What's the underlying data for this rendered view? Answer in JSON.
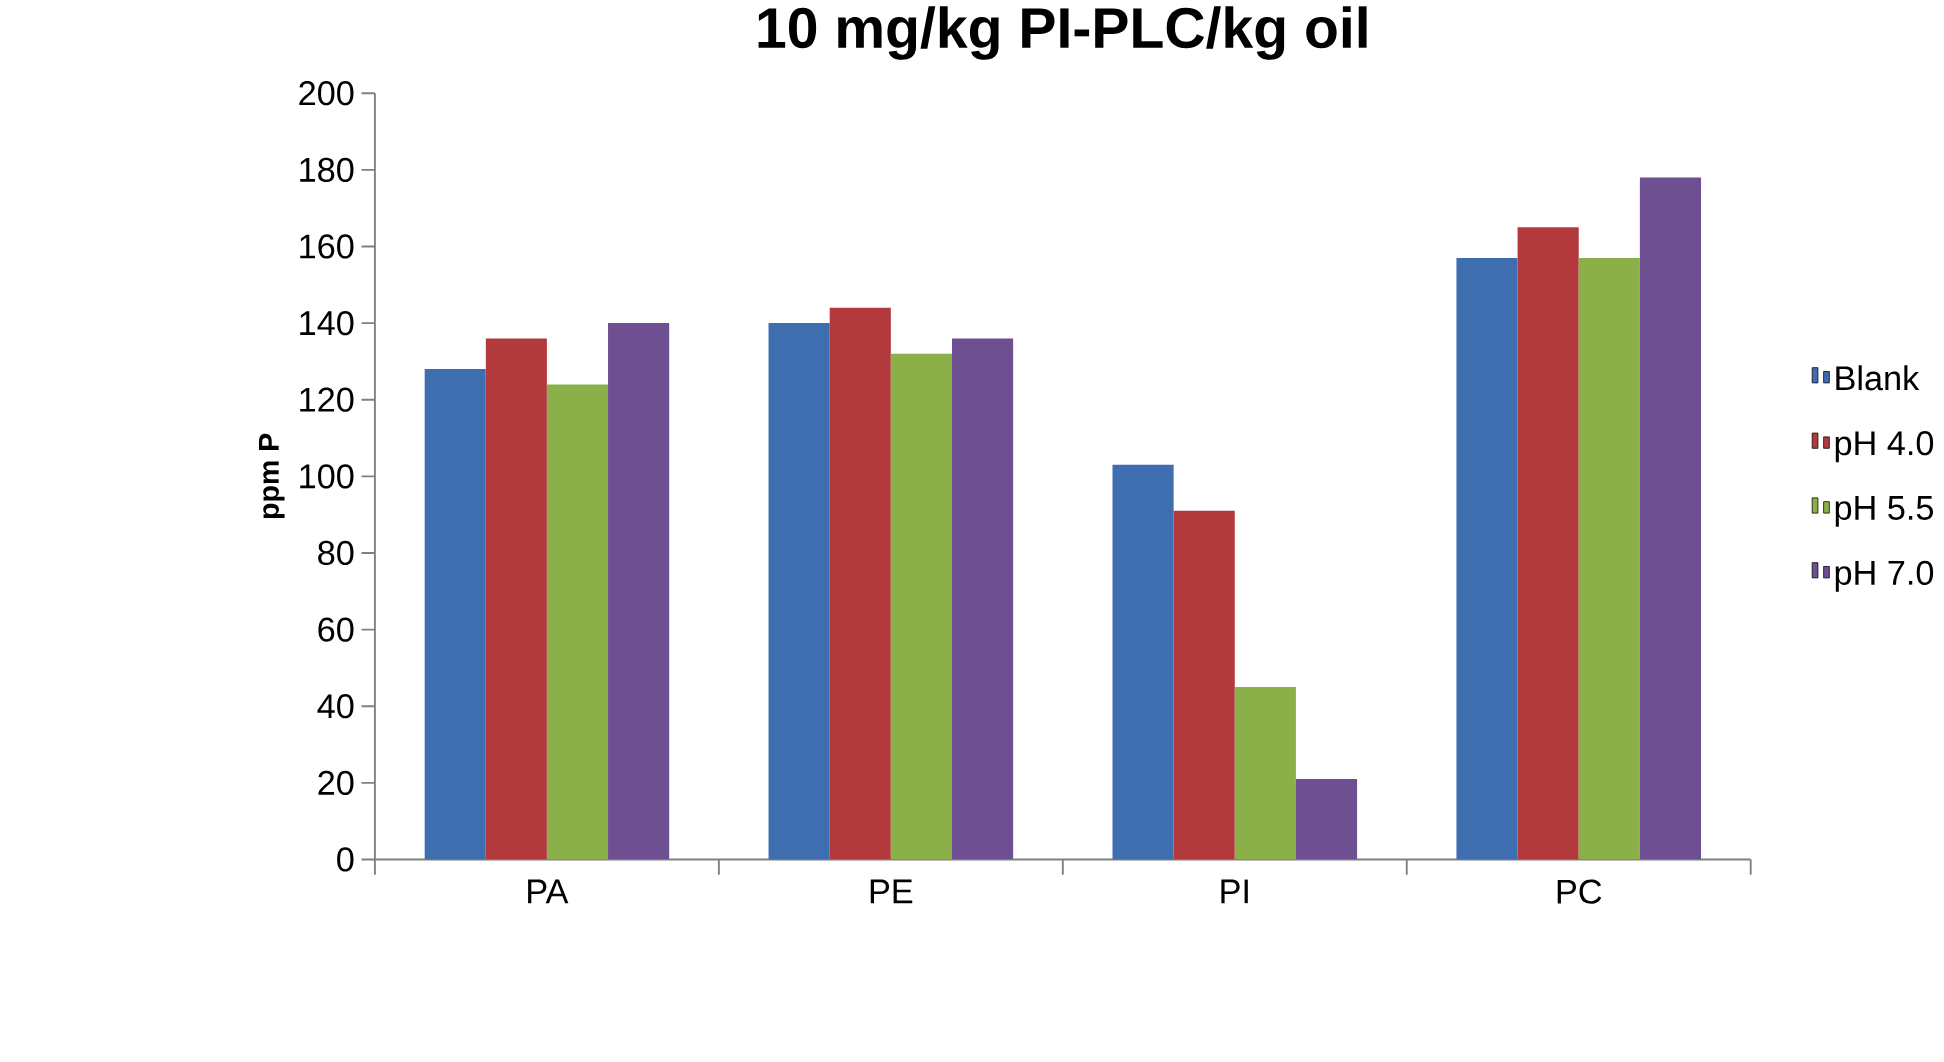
{
  "chart_data": {
    "type": "bar",
    "title": "10 mg/kg PI-PLC/kg oil",
    "ylabel": "ppm P",
    "categories": [
      "PA",
      "PE",
      "PI",
      "PC"
    ],
    "series": [
      {
        "name": "Blank",
        "color": "#3f6eb0",
        "values": [
          128,
          140,
          103,
          157
        ]
      },
      {
        "name": "pH 4.0",
        "color": "#b33a3c",
        "values": [
          136,
          144,
          91,
          165
        ]
      },
      {
        "name": "pH 5.5",
        "color": "#8bb04a",
        "values": [
          124,
          132,
          45,
          157
        ]
      },
      {
        "name": "pH 7.0",
        "color": "#6e4f91",
        "values": [
          140,
          136,
          21,
          178
        ]
      }
    ],
    "ylim": [
      0,
      200
    ],
    "yticks": [
      0,
      20,
      40,
      60,
      80,
      100,
      120,
      140,
      160,
      180,
      200
    ],
    "grid": false,
    "legend": "right"
  }
}
